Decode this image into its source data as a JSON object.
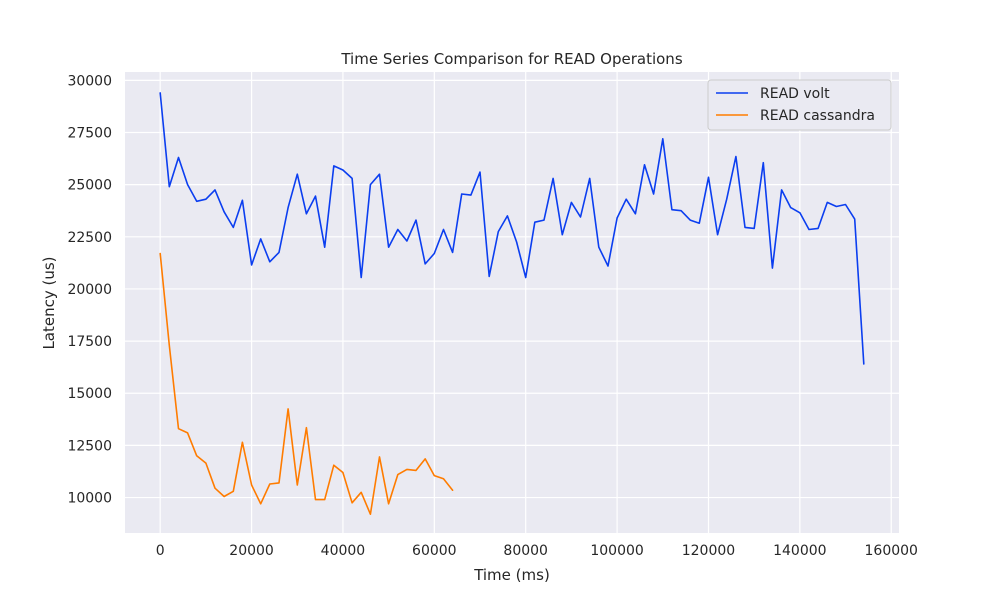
{
  "chart_data": {
    "type": "line",
    "title": "Time Series Comparison for READ Operations",
    "xlabel": "Time (ms)",
    "ylabel": "Latency (us)",
    "xlim": [
      -7700,
      161700
    ],
    "ylim": [
      8300,
      30400
    ],
    "xticks": [
      0,
      20000,
      40000,
      60000,
      80000,
      100000,
      120000,
      140000,
      160000
    ],
    "xtick_labels": [
      "0",
      "20000",
      "40000",
      "60000",
      "80000",
      "100000",
      "120000",
      "140000",
      "160000"
    ],
    "yticks": [
      10000,
      12500,
      15000,
      17500,
      20000,
      22500,
      25000,
      27500,
      30000
    ],
    "ytick_labels": [
      "10000",
      "12500",
      "15000",
      "17500",
      "20000",
      "22500",
      "25000",
      "27500",
      "30000"
    ],
    "grid": true,
    "background_color": "#eaeaf2",
    "legend_position": "top-right",
    "series": [
      {
        "name": "READ volt",
        "color": "#0b3ef0",
        "x": [
          0,
          2000,
          4000,
          6000,
          8000,
          10000,
          12000,
          14000,
          16000,
          18000,
          20000,
          22000,
          24000,
          26000,
          28000,
          30000,
          32000,
          34000,
          36000,
          38000,
          40000,
          42000,
          44000,
          46000,
          48000,
          50000,
          52000,
          54000,
          56000,
          58000,
          60000,
          62000,
          64000,
          66000,
          68000,
          70000,
          72000,
          74000,
          76000,
          78000,
          80000,
          82000,
          84000,
          86000,
          88000,
          90000,
          92000,
          94000,
          96000,
          98000,
          100000,
          102000,
          104000,
          106000,
          108000,
          110000,
          112000,
          114000,
          116000,
          118000,
          120000,
          122000,
          124000,
          126000,
          128000,
          130000,
          132000,
          134000,
          136000,
          138000,
          140000,
          142000,
          144000,
          146000,
          148000,
          150000,
          152000,
          154000
        ],
        "values": [
          29400,
          24900,
          26300,
          25000,
          24200,
          24300,
          24750,
          23700,
          22950,
          24250,
          21150,
          22400,
          21300,
          21750,
          23900,
          25500,
          23600,
          24450,
          22000,
          25900,
          25700,
          25300,
          20550,
          25000,
          25500,
          22000,
          22850,
          22300,
          23300,
          21200,
          21700,
          22850,
          21750,
          24550,
          24500,
          25600,
          20600,
          22750,
          23500,
          22250,
          20550,
          23200,
          23300,
          25300,
          22600,
          24150,
          23450,
          25300,
          22000,
          21100,
          23400,
          24300,
          23600,
          25950,
          24550,
          27200,
          23800,
          23750,
          23300,
          23150,
          25350,
          22600,
          24300,
          26350,
          22950,
          22900,
          26050,
          21000,
          24750,
          23900,
          23650,
          22850,
          22900,
          24150,
          23950,
          24050,
          23350,
          16400
        ]
      },
      {
        "name": "READ cassandra",
        "color": "#ff7c00",
        "x": [
          0,
          2000,
          4000,
          6000,
          8000,
          10000,
          12000,
          14000,
          16000,
          18000,
          20000,
          22000,
          24000,
          26000,
          28000,
          30000,
          32000,
          34000,
          36000,
          38000,
          40000,
          42000,
          44000,
          46000,
          48000,
          50000,
          52000,
          54000,
          56000,
          58000,
          60000,
          62000,
          64000
        ],
        "values": [
          21700,
          17300,
          13300,
          13100,
          12000,
          11650,
          10450,
          10050,
          10300,
          12650,
          10600,
          9700,
          10650,
          10700,
          14250,
          10600,
          13350,
          9900,
          9900,
          11550,
          11200,
          9750,
          10250,
          9200,
          11950,
          9700,
          11100,
          11350,
          11300,
          11850,
          11050,
          10900,
          10350
        ]
      }
    ]
  }
}
